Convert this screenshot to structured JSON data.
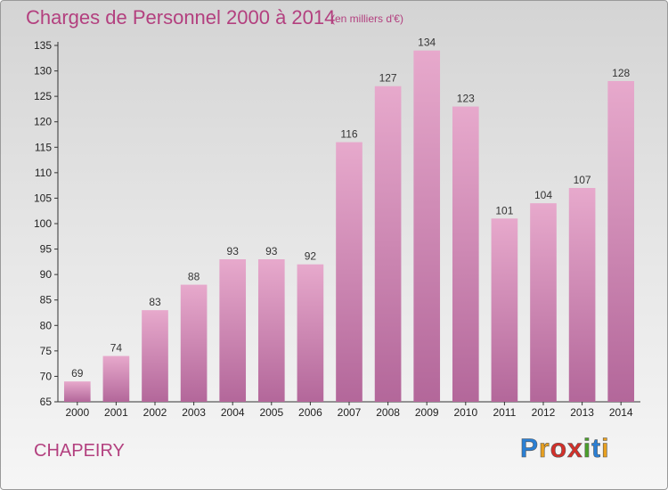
{
  "title": "Charges de Personnel 2000 à 2014",
  "subtitle": "(en milliers d'€)",
  "commune": "CHAPEIRY",
  "logo": {
    "letters": [
      "P",
      "r",
      "o",
      "x",
      "i",
      "t",
      "i"
    ],
    "colors": [
      "#2a7fd4",
      "#e8a020",
      "#d4302a",
      "#d4302a",
      "#4aa02a",
      "#2a7fd4",
      "#e8a020"
    ]
  },
  "chart_data": {
    "type": "bar",
    "title": "Charges de Personnel 2000 à 2014",
    "subtitle": "(en milliers d'€)",
    "categories": [
      "2000",
      "2001",
      "2002",
      "2003",
      "2004",
      "2005",
      "2006",
      "2007",
      "2008",
      "2009",
      "2010",
      "2011",
      "2012",
      "2013",
      "2014"
    ],
    "values": [
      69,
      74,
      83,
      88,
      93,
      93,
      92,
      116,
      127,
      134,
      123,
      101,
      104,
      107,
      128
    ],
    "ylim": [
      65,
      135
    ],
    "yticks": [
      65,
      70,
      75,
      80,
      85,
      90,
      95,
      100,
      105,
      110,
      115,
      120,
      125,
      130,
      135
    ],
    "grid": false,
    "bar_color_top": "#e7a9cc",
    "bar_color_bottom": "#b3679a"
  }
}
